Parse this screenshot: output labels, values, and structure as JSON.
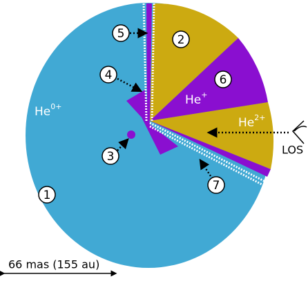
{
  "regions": {
    "neutral": {
      "base": "He",
      "charge": "0+"
    },
    "single": {
      "base": "He",
      "charge": "+"
    },
    "double": {
      "base": "He",
      "charge": "2+"
    }
  },
  "markers": [
    "1",
    "2",
    "3",
    "4",
    "5",
    "6",
    "7"
  ],
  "los": "LOS",
  "scale": "66 mas (155 au)"
}
